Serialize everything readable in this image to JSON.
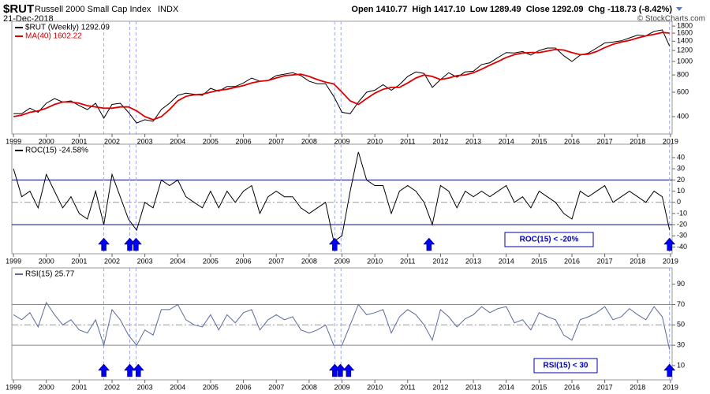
{
  "header": {
    "symbol": "$RUT",
    "name": "Russell 2000 Small Cap Index",
    "exchange": "INDX",
    "date": "21-Dec-2018",
    "quote": "Open 1410.77  High 1417.10  Low 1289.49  Close 1292.09  Chg -118.73 (-8.42%)",
    "credit": "© StockCharts.com"
  },
  "event_x": [
    2001.75,
    2002.54,
    2002.73,
    2008.78,
    2008.97,
    2018.97
  ],
  "chart_data": [
    {
      "type": "line",
      "log_scale": true,
      "xlim": [
        1998.95,
        2019.05
      ],
      "xticks": [
        1999,
        2000,
        2001,
        2002,
        2003,
        2004,
        2005,
        2006,
        2007,
        2008,
        2009,
        2010,
        2011,
        2012,
        2013,
        2014,
        2015,
        2016,
        2017,
        2018,
        2019
      ],
      "ylim": [
        300,
        1950
      ],
      "yticks": [
        400,
        600,
        800,
        1000,
        1200,
        1400,
        1600,
        1800
      ],
      "x": [
        1999,
        1999.25,
        1999.5,
        1999.75,
        2000,
        2000.25,
        2000.5,
        2000.75,
        2001,
        2001.25,
        2001.5,
        2001.75,
        2002,
        2002.25,
        2002.5,
        2002.75,
        2003,
        2003.25,
        2003.5,
        2003.75,
        2004,
        2004.25,
        2004.5,
        2004.75,
        2005,
        2005.25,
        2005.5,
        2005.75,
        2006,
        2006.25,
        2006.5,
        2006.75,
        2007,
        2007.25,
        2007.5,
        2007.75,
        2008,
        2008.25,
        2008.5,
        2008.75,
        2009,
        2009.25,
        2009.5,
        2009.75,
        2010,
        2010.25,
        2010.5,
        2010.75,
        2011,
        2011.25,
        2011.5,
        2011.75,
        2012,
        2012.25,
        2012.5,
        2012.75,
        2013,
        2013.25,
        2013.5,
        2013.75,
        2014,
        2014.25,
        2014.5,
        2014.75,
        2015,
        2015.25,
        2015.5,
        2015.75,
        2016,
        2016.25,
        2016.5,
        2016.75,
        2017,
        2017.25,
        2017.5,
        2017.75,
        2018,
        2018.25,
        2018.5,
        2018.75,
        2018.97
      ],
      "series": [
        {
          "name": "$RUT (Weekly) 1292.09",
          "color": "#000000",
          "values": [
            420,
            420,
            460,
            430,
            500,
            540,
            510,
            520,
            480,
            450,
            500,
            390,
            490,
            500,
            430,
            360,
            380,
            370,
            450,
            500,
            570,
            590,
            580,
            570,
            640,
            610,
            660,
            660,
            700,
            760,
            720,
            730,
            790,
            810,
            830,
            790,
            720,
            690,
            690,
            560,
            430,
            420,
            510,
            600,
            620,
            680,
            620,
            680,
            780,
            840,
            820,
            650,
            740,
            830,
            770,
            840,
            850,
            950,
            980,
            1070,
            1160,
            1150,
            1180,
            1110,
            1200,
            1250,
            1250,
            1100,
            1000,
            1110,
            1150,
            1250,
            1360,
            1380,
            1410,
            1480,
            1550,
            1530,
            1650,
            1690,
            1292
          ]
        },
        {
          "name": "MA(40) 1602.22",
          "color": "#dd0000",
          "values": [
            400,
            410,
            430,
            440,
            460,
            490,
            510,
            510,
            500,
            480,
            470,
            460,
            460,
            470,
            470,
            440,
            400,
            380,
            400,
            450,
            520,
            560,
            575,
            580,
            600,
            620,
            630,
            650,
            670,
            700,
            720,
            730,
            760,
            790,
            800,
            810,
            780,
            740,
            710,
            690,
            600,
            520,
            490,
            540,
            590,
            630,
            650,
            650,
            700,
            760,
            800,
            780,
            740,
            760,
            790,
            800,
            830,
            880,
            940,
            1000,
            1070,
            1120,
            1150,
            1160,
            1160,
            1190,
            1220,
            1210,
            1160,
            1120,
            1130,
            1180,
            1260,
            1330,
            1380,
            1420,
            1480,
            1530,
            1570,
            1620,
            1602
          ]
        }
      ]
    },
    {
      "type": "line",
      "log_scale": false,
      "xlim": [
        1998.95,
        2019.05
      ],
      "xticks": [
        1999,
        2000,
        2001,
        2002,
        2003,
        2004,
        2005,
        2006,
        2007,
        2008,
        2009,
        2010,
        2011,
        2012,
        2013,
        2014,
        2015,
        2016,
        2017,
        2018,
        2019
      ],
      "ylim": [
        -46,
        52
      ],
      "yticks": [
        -40,
        -30,
        -20,
        -10,
        0,
        10,
        20,
        30,
        40
      ],
      "reference_lines": [
        -20,
        20
      ],
      "center_line": 0,
      "annotation": "ROC(15) < -20%",
      "signal_x": [
        2001.75,
        2002.54,
        2002.73,
        2008.78,
        2011.65,
        2018.97
      ],
      "x": [
        1999,
        1999.25,
        1999.5,
        1999.75,
        2000,
        2000.25,
        2000.5,
        2000.75,
        2001,
        2001.25,
        2001.5,
        2001.75,
        2002,
        2002.25,
        2002.5,
        2002.75,
        2003,
        2003.25,
        2003.5,
        2003.75,
        2004,
        2004.25,
        2004.5,
        2004.75,
        2005,
        2005.25,
        2005.5,
        2005.75,
        2006,
        2006.25,
        2006.5,
        2006.75,
        2007,
        2007.25,
        2007.5,
        2007.75,
        2008,
        2008.25,
        2008.5,
        2008.75,
        2009,
        2009.25,
        2009.5,
        2009.75,
        2010,
        2010.25,
        2010.5,
        2010.75,
        2011,
        2011.25,
        2011.5,
        2011.75,
        2012,
        2012.25,
        2012.5,
        2012.75,
        2013,
        2013.25,
        2013.5,
        2013.75,
        2014,
        2014.25,
        2014.5,
        2014.75,
        2015,
        2015.25,
        2015.5,
        2015.75,
        2016,
        2016.25,
        2016.5,
        2016.75,
        2017,
        2017.25,
        2017.5,
        2017.75,
        2018,
        2018.25,
        2018.5,
        2018.75,
        2018.97
      ],
      "series": [
        {
          "name": "ROC(15) -24.58%",
          "color": "#000000",
          "values": [
            30,
            5,
            10,
            -5,
            25,
            10,
            -5,
            5,
            -10,
            -15,
            10,
            -20,
            25,
            5,
            -15,
            -25,
            0,
            -5,
            20,
            15,
            20,
            5,
            0,
            -5,
            10,
            -5,
            10,
            0,
            10,
            15,
            -10,
            5,
            10,
            5,
            5,
            -5,
            -10,
            -5,
            0,
            -35,
            -30,
            10,
            45,
            20,
            15,
            15,
            -10,
            10,
            15,
            10,
            0,
            -20,
            15,
            10,
            -5,
            10,
            5,
            10,
            5,
            10,
            15,
            0,
            5,
            -5,
            10,
            5,
            0,
            -10,
            -15,
            10,
            5,
            10,
            15,
            0,
            5,
            10,
            5,
            0,
            10,
            5,
            -24.58
          ]
        }
      ]
    },
    {
      "type": "line",
      "log_scale": false,
      "xlim": [
        1998.95,
        2019.05
      ],
      "xticks": [
        1999,
        2000,
        2001,
        2002,
        2003,
        2004,
        2005,
        2006,
        2007,
        2008,
        2009,
        2010,
        2011,
        2012,
        2013,
        2014,
        2015,
        2016,
        2017,
        2018,
        2019
      ],
      "ylim": [
        -4,
        106
      ],
      "yticks": [
        10,
        30,
        50,
        70,
        90
      ],
      "reference_lines": [
        30,
        70
      ],
      "center_line": 50,
      "annotation": "RSI(15) < 30",
      "signal_x": [
        2001.75,
        2002.54,
        2002.8,
        2008.78,
        2008.95,
        2009.2,
        2018.97
      ],
      "x": [
        1999,
        1999.25,
        1999.5,
        1999.75,
        2000,
        2000.25,
        2000.5,
        2000.75,
        2001,
        2001.25,
        2001.5,
        2001.75,
        2002,
        2002.25,
        2002.5,
        2002.75,
        2003,
        2003.25,
        2003.5,
        2003.75,
        2004,
        2004.25,
        2004.5,
        2004.75,
        2005,
        2005.25,
        2005.5,
        2005.75,
        2006,
        2006.25,
        2006.5,
        2006.75,
        2007,
        2007.25,
        2007.5,
        2007.75,
        2008,
        2008.25,
        2008.5,
        2008.75,
        2009,
        2009.25,
        2009.5,
        2009.75,
        2010,
        2010.25,
        2010.5,
        2010.75,
        2011,
        2011.25,
        2011.5,
        2011.75,
        2012,
        2012.25,
        2012.5,
        2012.75,
        2013,
        2013.25,
        2013.5,
        2013.75,
        2014,
        2014.25,
        2014.5,
        2014.75,
        2015,
        2015.25,
        2015.5,
        2015.75,
        2016,
        2016.25,
        2016.5,
        2016.75,
        2017,
        2017.25,
        2017.5,
        2017.75,
        2018,
        2018.25,
        2018.5,
        2018.75,
        2018.97
      ],
      "series": [
        {
          "name": "RSI(15) 25.77",
          "color": "#5a6aa0",
          "values": [
            60,
            55,
            62,
            48,
            72,
            60,
            50,
            55,
            45,
            42,
            55,
            30,
            65,
            55,
            40,
            30,
            45,
            40,
            65,
            65,
            70,
            55,
            50,
            48,
            60,
            45,
            60,
            52,
            62,
            65,
            45,
            55,
            60,
            55,
            58,
            45,
            42,
            45,
            50,
            30,
            30,
            50,
            70,
            60,
            62,
            65,
            42,
            58,
            65,
            60,
            50,
            35,
            65,
            58,
            48,
            56,
            60,
            68,
            62,
            66,
            68,
            52,
            55,
            45,
            62,
            58,
            55,
            40,
            35,
            55,
            58,
            62,
            68,
            55,
            58,
            66,
            60,
            55,
            68,
            58,
            25.77
          ]
        }
      ]
    }
  ]
}
